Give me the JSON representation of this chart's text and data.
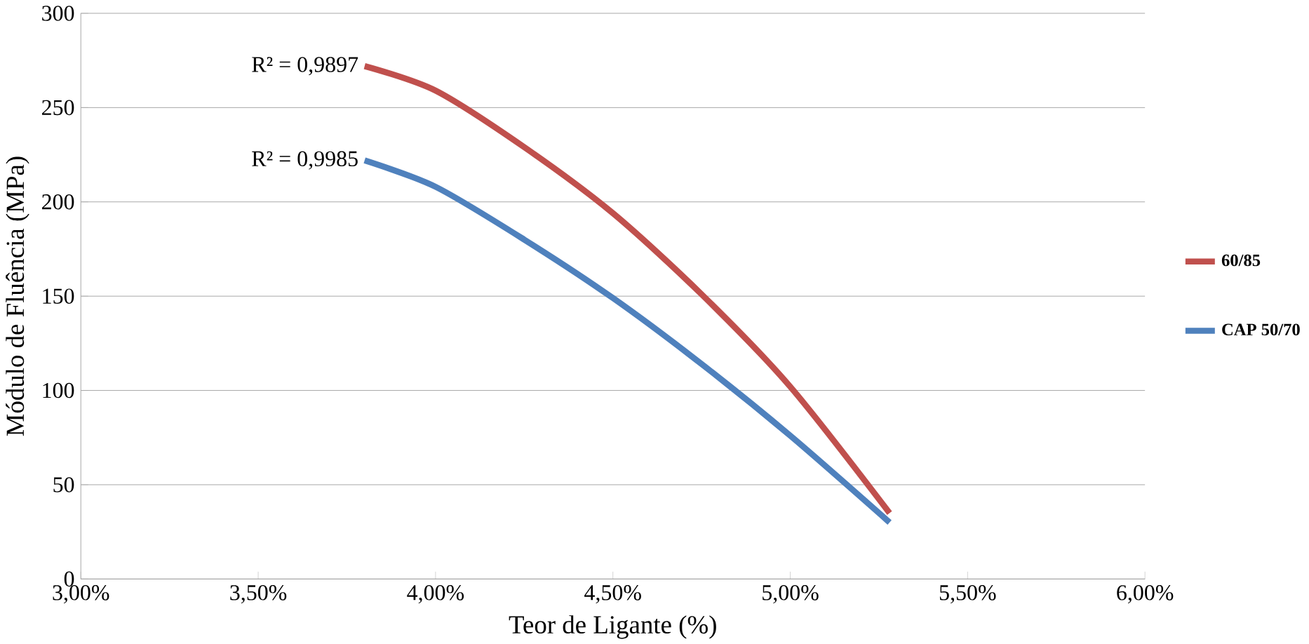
{
  "chart_data": {
    "type": "line",
    "xlabel": "Teor de Ligante (%)",
    "ylabel": "Módulo de Fluência (MPa)",
    "xlim": [
      3,
      6
    ],
    "ylim": [
      0,
      300
    ],
    "xticks": [
      {
        "value": 3,
        "label": "3,00%"
      },
      {
        "value": 3.5,
        "label": "3,50%"
      },
      {
        "value": 4,
        "label": "4,00%"
      },
      {
        "value": 4.5,
        "label": "4,50%"
      },
      {
        "value": 5,
        "label": "5,00%"
      },
      {
        "value": 5.5,
        "label": "5,50%"
      },
      {
        "value": 6,
        "label": "6,00%"
      }
    ],
    "yticks": [
      0,
      50,
      100,
      150,
      200,
      250,
      300
    ],
    "grid": "y",
    "legend": "right",
    "marker": "none",
    "line_style": "solid",
    "x": [
      3.8,
      4.0,
      4.25,
      4.5,
      4.75,
      5.0,
      5.28
    ],
    "series": [
      {
        "name": "60/85",
        "color": "#c0504d",
        "values": [
          272,
          259,
          229,
          194,
          151,
          102,
          35
        ]
      },
      {
        "name": "CAP 50/70",
        "color": "#4f81bd",
        "values": [
          222,
          208,
          180,
          149,
          114,
          76,
          30
        ]
      }
    ],
    "annotations": [
      {
        "text": "R² = 0,9897",
        "x": 3.8,
        "y": 272
      },
      {
        "text": "R² = 0,9985",
        "x": 3.8,
        "y": 222
      }
    ]
  }
}
